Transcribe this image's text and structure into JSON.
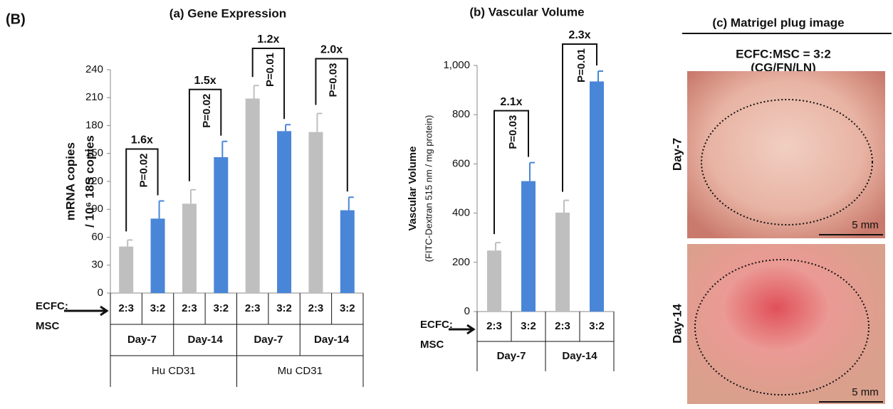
{
  "figure_label": "(B)",
  "chart_data": [
    {
      "type": "bar",
      "title": "(a) Gene Expression",
      "ylabel": [
        "mRNA copies",
        "/ 10⁶ 18S copies"
      ],
      "categories": [
        "2:3",
        "3:2",
        "2:3",
        "3:2",
        "2:3",
        "3:2",
        "2:3",
        "3:2"
      ],
      "values": [
        50,
        80,
        96,
        146,
        209,
        174,
        173,
        89
      ],
      "errors": [
        7,
        19,
        15,
        17,
        14,
        7,
        20,
        14
      ],
      "colors": [
        "#bfbfbf",
        "#4a86d8",
        "#bfbfbf",
        "#4a86d8",
        "#bfbfbf",
        "#4a86d8",
        "#bfbfbf",
        "#4a86d8"
      ],
      "days": [
        "Day-7",
        "Day-14",
        "Day-7",
        "Day-14"
      ],
      "groups": [
        "Hu CD31",
        "Mu CD31"
      ],
      "row_label": [
        "ECFC:",
        "MSC"
      ],
      "annotations": [
        {
          "ratio": "1.6x",
          "p": "P=0.02"
        },
        {
          "ratio": "1.5x",
          "p": "P=0.02"
        },
        {
          "ratio": "1.2x",
          "p": "P=0.01"
        },
        {
          "ratio": "2.0x",
          "p": "P=0.03"
        }
      ],
      "ylim": [
        0,
        240
      ],
      "yticks": [
        0,
        30,
        60,
        90,
        120,
        150,
        180,
        210,
        240
      ]
    },
    {
      "type": "bar",
      "title": "(b) Vascular Volume",
      "ylabel": [
        "Vascular Volume",
        "(FITC-Dextran 515 nm / mg protein)"
      ],
      "categories": [
        "2:3",
        "3:2",
        "2:3",
        "3:2"
      ],
      "values": [
        248,
        530,
        402,
        935
      ],
      "errors": [
        32,
        75,
        50,
        42
      ],
      "colors": [
        "#bfbfbf",
        "#4a86d8",
        "#bfbfbf",
        "#4a86d8"
      ],
      "days": [
        "Day-7",
        "Day-14"
      ],
      "row_label": [
        "ECFC:",
        "MSC"
      ],
      "annotations": [
        {
          "ratio": "2.1x",
          "p": "P=0.03"
        },
        {
          "ratio": "2.3x",
          "p": "P=0.01"
        }
      ],
      "ylim": [
        0,
        1000
      ],
      "yticks": [
        0,
        200,
        400,
        600,
        800,
        {
          "value": 1000,
          "label": "1,000"
        }
      ]
    }
  ],
  "image_panel": {
    "title": "(c) Matrigel plug image",
    "subtitle": [
      "ECFC:MSC = 3:2",
      "(CG/FN/LN)"
    ],
    "rows": [
      {
        "label": "Day-7",
        "scale": "5 mm"
      },
      {
        "label": "Day-14",
        "scale": "5 mm"
      }
    ]
  }
}
